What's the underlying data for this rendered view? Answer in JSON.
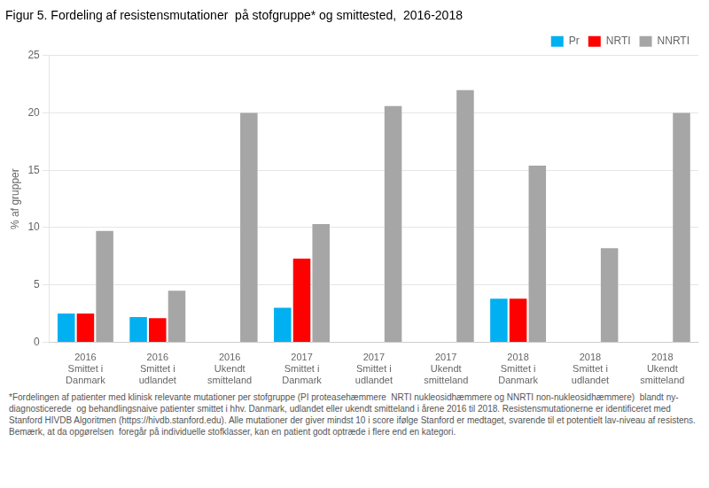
{
  "chart_data": {
    "type": "bar",
    "title": "Figur 5. Fordeling af resistensmutationer  på stofgruppe* og smittested,  2016-2018",
    "y_label": "% af grupper",
    "categories": [
      "2016\nSmittet i\nDanmark",
      "2016\nSmittet i\nudlandet",
      "2016\nUkendt\nsmitteland",
      "2017\nSmittet i\nDanmark",
      "2017\nSmittet i\nudlandet",
      "2017\nUkendt\nsmitteland",
      "2018\nSmittet i\nDanmark",
      "2018\nSmittet i\nudlandet",
      "2018\nUkendt\nsmitteland"
    ],
    "series": [
      {
        "name": "Pr",
        "color": "#00B0F0",
        "values": [
          2.5,
          2.2,
          0.0,
          3.0,
          0.0,
          0.0,
          3.8,
          0.0,
          0.0
        ]
      },
      {
        "name": "NRTI",
        "color": "#FF0000",
        "values": [
          2.5,
          2.1,
          0.0,
          7.3,
          0.0,
          0.0,
          3.8,
          0.0,
          0.0
        ]
      },
      {
        "name": "NNRTI",
        "color": "#A6A6A6",
        "values": [
          9.7,
          4.5,
          20.0,
          10.3,
          20.6,
          22.0,
          15.4,
          8.2,
          20.0
        ]
      }
    ],
    "ylim": [
      0,
      25
    ],
    "yticks": [
      0,
      5,
      10,
      15,
      20,
      25
    ],
    "grid": true,
    "legend": "upper right",
    "annotations": [
      "*Fordelingen af patienter med klinisk relevante mutationer per stofgruppe (PI proteasehæmmere  NRTI nukleosidhæmmere og NNRTI non-nukleosidhæmmere)  blandt ny-diagnosticerede  og behandlingsnaive patienter smittet i hhv. Danmark, udlandet eller ukendt smitteland i årene 2016 til 2018. Resistensmutationerne er identificeret med Stanford HIVDB Algoritmen (https://hivdb.stanford.edu). Alle mutationer der giver mindst 10 i score ifølge Stanford er medtaget, svarende til et potentielt lav-niveau af resistens. Bemærk, at da opgørelsen  foregår på individuelle stofklasser, kan en patient godt optræde i flere end en kategori."
    ]
  }
}
